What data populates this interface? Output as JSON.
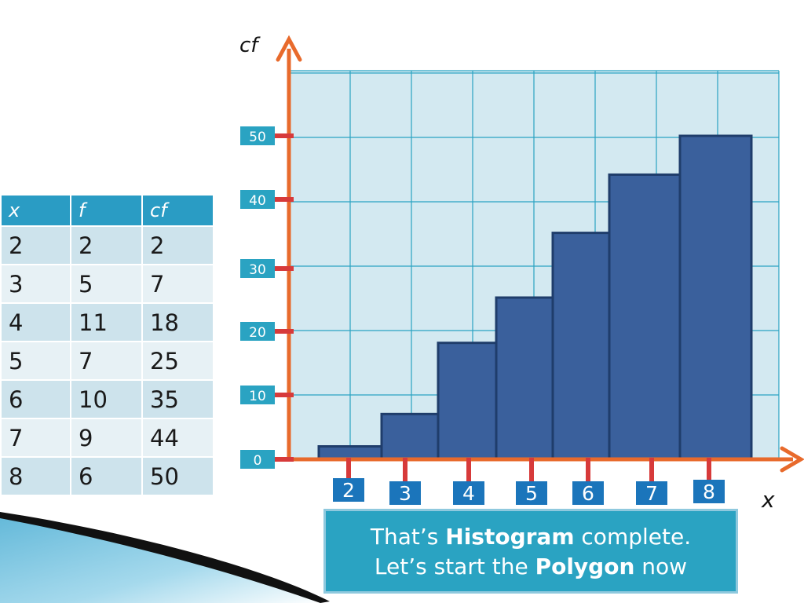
{
  "table": {
    "headers": [
      "x",
      "f",
      "cf"
    ],
    "rows": [
      [
        "2",
        "2",
        "2"
      ],
      [
        "3",
        "5",
        "7"
      ],
      [
        "4",
        "11",
        "18"
      ],
      [
        "5",
        "7",
        "25"
      ],
      [
        "6",
        "10",
        "35"
      ],
      [
        "7",
        "9",
        "44"
      ],
      [
        "8",
        "6",
        "50"
      ]
    ]
  },
  "callout": {
    "line1_pre": "That’s ",
    "line1_bold": "Histogram",
    "line1_post": " complete.",
    "line2_pre": "Let’s start the ",
    "line2_bold": "Polygon",
    "line2_post": " now"
  },
  "chart_data": {
    "type": "bar",
    "categories": [
      "2",
      "3",
      "4",
      "5",
      "6",
      "7",
      "8"
    ],
    "values": [
      2,
      7,
      18,
      25,
      35,
      44,
      50
    ],
    "title": "",
    "xlabel": "x",
    "ylabel": "cf",
    "yticks": [
      "0",
      "10",
      "20",
      "30",
      "40",
      "50"
    ],
    "ylim": [
      0,
      50
    ],
    "grid": true
  },
  "colors": {
    "bar": "#3a609c",
    "bar_edge": "#1f3d6b",
    "axis": "#e86a2c",
    "grid_bg": "#d3e9f1",
    "grid_line": "#2aa3c2",
    "label_bg": "#2aa3c2",
    "xlabel_bg": "#1b75bb",
    "tick_mark": "#d73a3a"
  }
}
